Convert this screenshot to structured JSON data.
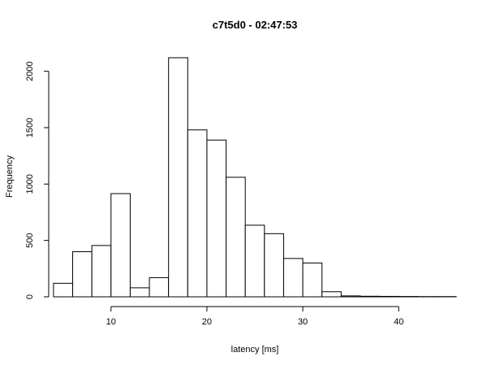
{
  "chart_data": {
    "type": "bar",
    "title": "c7t5d0 - 02:47:53",
    "xlabel": "latency [ms]",
    "ylabel": "Frequency",
    "bin_edges": [
      4,
      6,
      8,
      10,
      12,
      14,
      16,
      18,
      20,
      22,
      24,
      26,
      28,
      30,
      32,
      34,
      36,
      38,
      40,
      42,
      44,
      46
    ],
    "values": [
      120,
      400,
      455,
      915,
      80,
      170,
      2120,
      1480,
      1390,
      1060,
      635,
      560,
      340,
      300,
      45,
      8,
      5,
      4,
      3,
      2,
      2
    ],
    "xlim": [
      3.5,
      46.5
    ],
    "ylim": [
      0,
      2120
    ],
    "x_ticks": [
      10,
      20,
      30,
      40
    ],
    "y_ticks": [
      0,
      500,
      1000,
      1500,
      2000
    ],
    "grid": false,
    "legend": "none",
    "colors": {
      "bar_fill": "#ffffff",
      "bar_stroke": "#000000",
      "axis": "#000000"
    }
  }
}
